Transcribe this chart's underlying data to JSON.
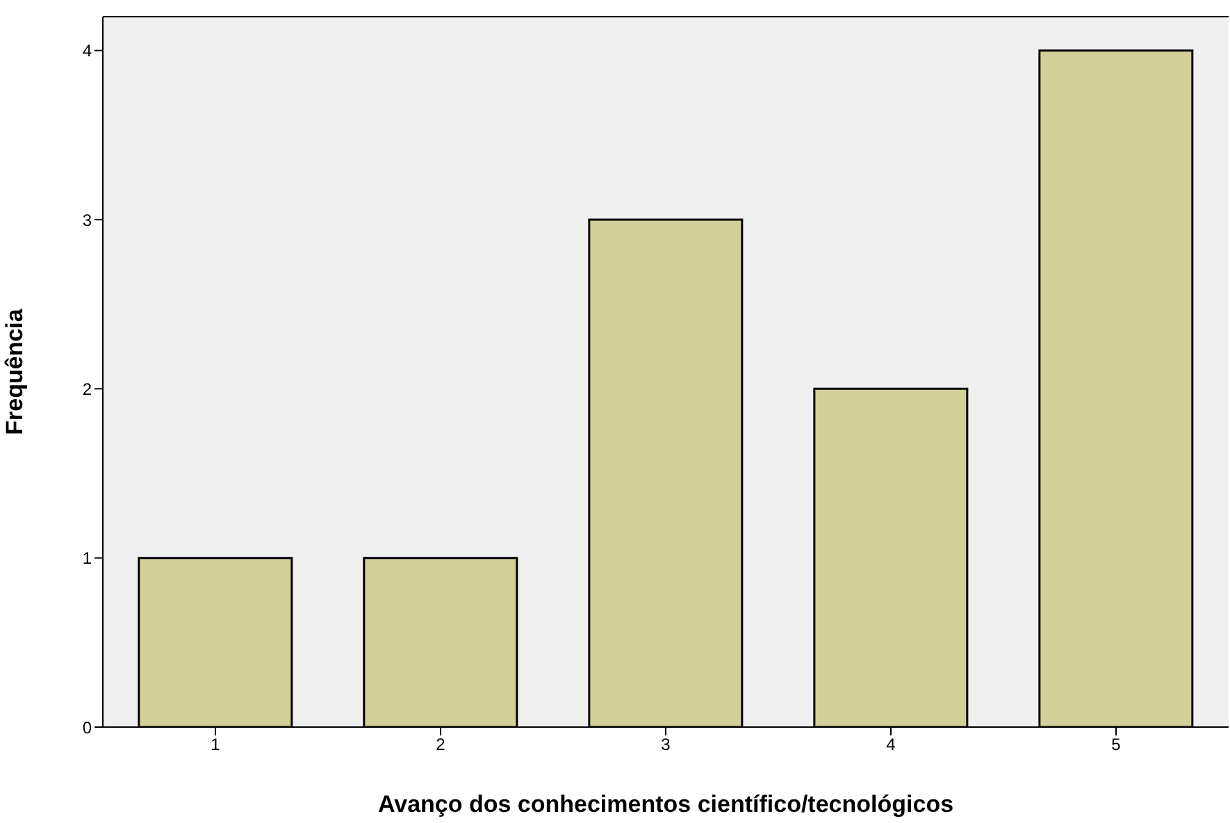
{
  "chart_data": {
    "type": "bar",
    "xlabel": "Avanço dos conhecimentos científico/tecnológicos",
    "ylabel": "Frequência",
    "categories": [
      "1",
      "2",
      "3",
      "4",
      "5"
    ],
    "values": [
      1,
      1,
      3,
      2,
      4
    ],
    "color": "#d3cf98",
    "ylim": [
      0,
      4.2
    ],
    "yticks": [
      0,
      1,
      2,
      3,
      4
    ],
    "grid": false
  }
}
